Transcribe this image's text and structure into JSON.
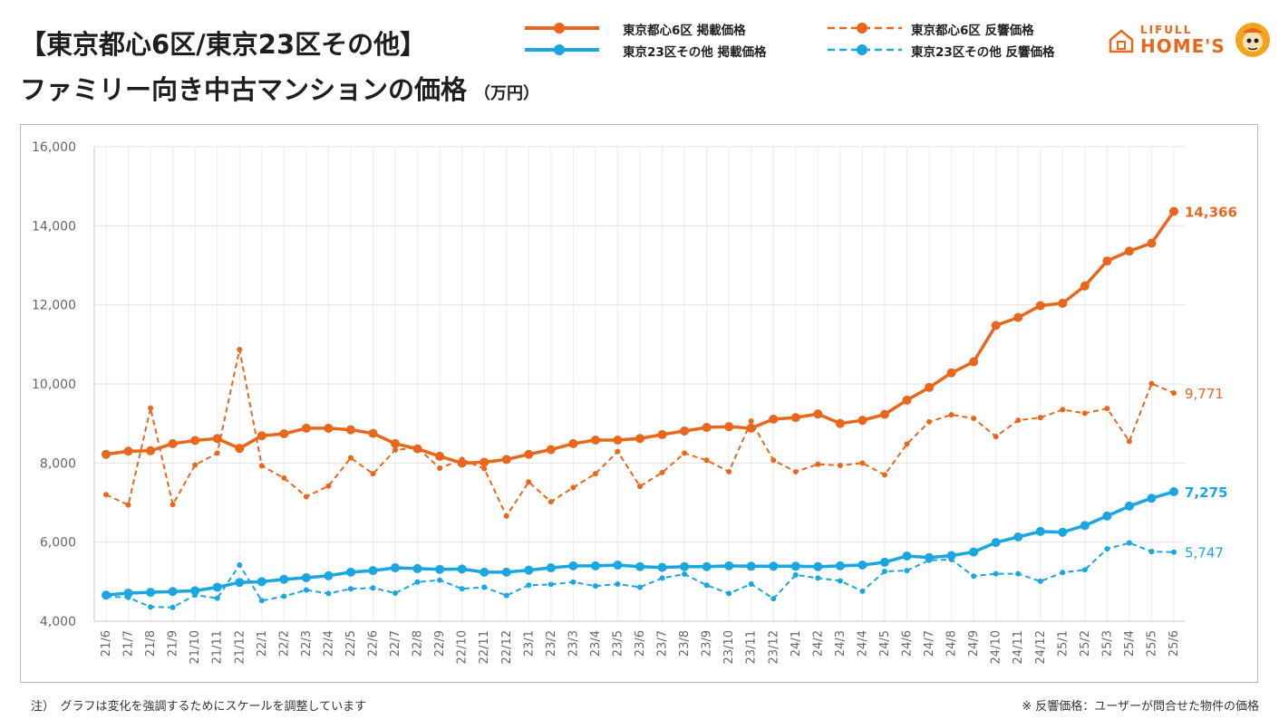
{
  "header": {
    "title_line1": "【東京都心6区/東京23区その他】",
    "title_line2": "ファミリー向き中古マンションの価格",
    "unit": "（万円）"
  },
  "logo": {
    "text_top": "LIFULL",
    "text_bottom": "HOME'S",
    "icon": "home-icon"
  },
  "footer": {
    "note": "注）　グラフは変化を強調するためにスケールを調整しています",
    "source": "※ 反響価格：ユーザーが問合せた物件の価格"
  },
  "colors": {
    "orange": "#e8671c",
    "blue": "#1aa6e0",
    "grid": "#e6e6e6",
    "axis": "#b9b9b9"
  },
  "chart_data": {
    "type": "line",
    "ylim": [
      4000,
      16000
    ],
    "yticks": [
      4000,
      6000,
      8000,
      10000,
      12000,
      14000,
      16000
    ],
    "ytick_labels": [
      "4,000",
      "6,000",
      "8,000",
      "10,000",
      "12,000",
      "14,000",
      "16,000"
    ],
    "grid": true,
    "legend_position": "top",
    "categories": [
      "21/6",
      "21/7",
      "21/8",
      "21/9",
      "21/10",
      "21/11",
      "21/12",
      "22/1",
      "22/2",
      "22/3",
      "22/4",
      "22/5",
      "22/6",
      "22/7",
      "22/8",
      "22/9",
      "22/10",
      "22/11",
      "22/12",
      "23/1",
      "23/2",
      "23/3",
      "23/4",
      "23/5",
      "23/6",
      "23/7",
      "23/8",
      "23/9",
      "23/10",
      "23/11",
      "23/12",
      "24/1",
      "24/2",
      "24/3",
      "24/4",
      "24/5",
      "24/6",
      "24/7",
      "24/8",
      "24/9",
      "24/10",
      "24/11",
      "24/12",
      "25/1",
      "25/2",
      "25/3",
      "25/4",
      "25/5",
      "25/6"
    ],
    "series": [
      {
        "name": "東京都心6区 掲載価格",
        "color": "#e8671c",
        "style": "solid",
        "end_label": "14,366",
        "values": [
          8220,
          8300,
          8310,
          8490,
          8570,
          8620,
          8370,
          8690,
          8740,
          8880,
          8880,
          8840,
          8750,
          8490,
          8360,
          8170,
          8000,
          8020,
          8090,
          8220,
          8340,
          8490,
          8580,
          8580,
          8620,
          8720,
          8810,
          8900,
          8920,
          8880,
          9110,
          9150,
          9240,
          9000,
          9080,
          9230,
          9590,
          9910,
          10280,
          10560,
          11480,
          11680,
          11980,
          12040,
          12480,
          13110,
          13360,
          13560,
          14366
        ]
      },
      {
        "name": "東京都心6区 反響価格",
        "color": "#e8671c",
        "style": "dashed",
        "end_label": "9,771",
        "values": [
          7200,
          6940,
          9390,
          6950,
          7950,
          8250,
          10870,
          7930,
          7620,
          7150,
          7420,
          8130,
          7730,
          8330,
          8390,
          7870,
          8090,
          7860,
          6660,
          7520,
          7020,
          7380,
          7730,
          8290,
          7410,
          7760,
          8250,
          8070,
          7780,
          9060,
          8070,
          7780,
          7970,
          7940,
          8000,
          7700,
          8480,
          9040,
          9220,
          9130,
          8670,
          9080,
          9150,
          9350,
          9260,
          9380,
          8550,
          10010,
          9771
        ]
      },
      {
        "name": "東京23区その他 掲載価格",
        "color": "#1aa6e0",
        "style": "solid",
        "end_label": "7,275",
        "values": [
          4660,
          4710,
          4730,
          4750,
          4770,
          4860,
          4980,
          5000,
          5060,
          5100,
          5150,
          5240,
          5280,
          5350,
          5330,
          5310,
          5320,
          5240,
          5240,
          5290,
          5350,
          5400,
          5400,
          5420,
          5380,
          5360,
          5380,
          5380,
          5400,
          5390,
          5390,
          5390,
          5380,
          5400,
          5420,
          5490,
          5650,
          5610,
          5660,
          5750,
          5990,
          6130,
          6270,
          6250,
          6420,
          6660,
          6910,
          7110,
          7275
        ]
      },
      {
        "name": "東京23区その他 反響価格",
        "color": "#1aa6e0",
        "style": "dashed",
        "end_label": "5,747",
        "values": [
          4620,
          4600,
          4360,
          4350,
          4660,
          4580,
          5420,
          4520,
          4630,
          4790,
          4700,
          4820,
          4840,
          4710,
          4990,
          5040,
          4820,
          4860,
          4650,
          4910,
          4930,
          4990,
          4890,
          4940,
          4860,
          5090,
          5190,
          4910,
          4700,
          4940,
          4570,
          5170,
          5090,
          5020,
          4760,
          5260,
          5280,
          5540,
          5560,
          5140,
          5200,
          5200,
          5010,
          5230,
          5300,
          5830,
          5980,
          5760,
          5747
        ]
      }
    ]
  }
}
